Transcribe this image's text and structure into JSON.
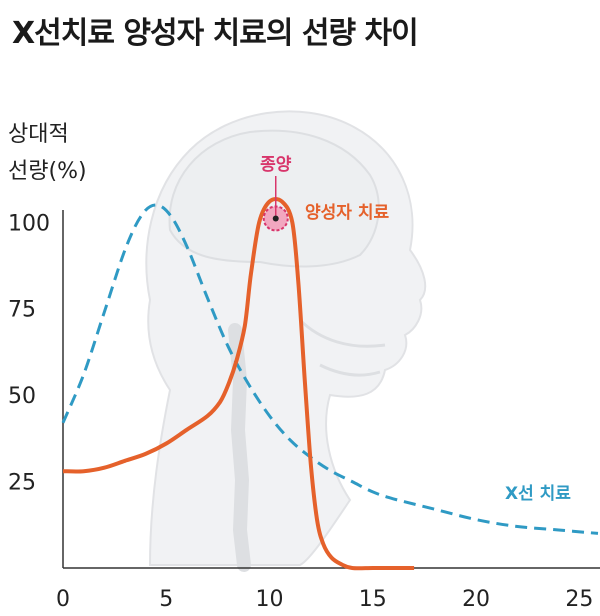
{
  "chart_data": {
    "type": "line",
    "title": "X선치료 양성자 치료의 선량 차이",
    "xlabel": "",
    "ylabel_lines": [
      "상대적",
      "선량(%)"
    ],
    "xlim": [
      0,
      26
    ],
    "ylim": [
      0,
      105
    ],
    "x_ticks": [
      0,
      5,
      10,
      15,
      20,
      25
    ],
    "y_ticks": [
      25,
      50,
      75,
      100
    ],
    "grid": false,
    "series": [
      {
        "name": "X선 치료",
        "color": "#2f9ac4",
        "dash": true,
        "x": [
          0,
          1,
          2,
          3,
          3.8,
          4.5,
          5.2,
          6,
          7,
          8,
          9,
          10,
          11,
          12,
          13,
          14,
          15,
          16,
          18,
          20,
          22,
          24,
          26
        ],
        "y": [
          42,
          56,
          74,
          92,
          102,
          105,
          102,
          93,
          78,
          64,
          53,
          44,
          37,
          32,
          28,
          25,
          22,
          20,
          17,
          14,
          12,
          11,
          10
        ]
      },
      {
        "name": "양성자 치료",
        "color": "#e5612b",
        "dash": false,
        "x": [
          0,
          1,
          2,
          3,
          4,
          5,
          6,
          7,
          7.6,
          8,
          8.4,
          8.8,
          9.1,
          9.5,
          10,
          10.6,
          11.1,
          11.4,
          11.7,
          12,
          12.3,
          12.6,
          13,
          13.5,
          14,
          15,
          16,
          17
        ],
        "y": [
          28,
          28,
          29,
          31,
          33,
          36,
          40,
          44,
          48,
          53,
          60,
          70,
          85,
          100,
          106,
          106,
          100,
          82,
          55,
          30,
          14,
          7,
          3,
          1,
          0,
          0,
          0,
          0
        ]
      }
    ],
    "annotations": [
      {
        "text": "종양",
        "color": "#d8356b"
      }
    ]
  },
  "colors": {
    "axis": "#333333",
    "head": "#d9dce0",
    "tumor": "#d8356b",
    "tumor_fill": "#f2a7c0"
  }
}
